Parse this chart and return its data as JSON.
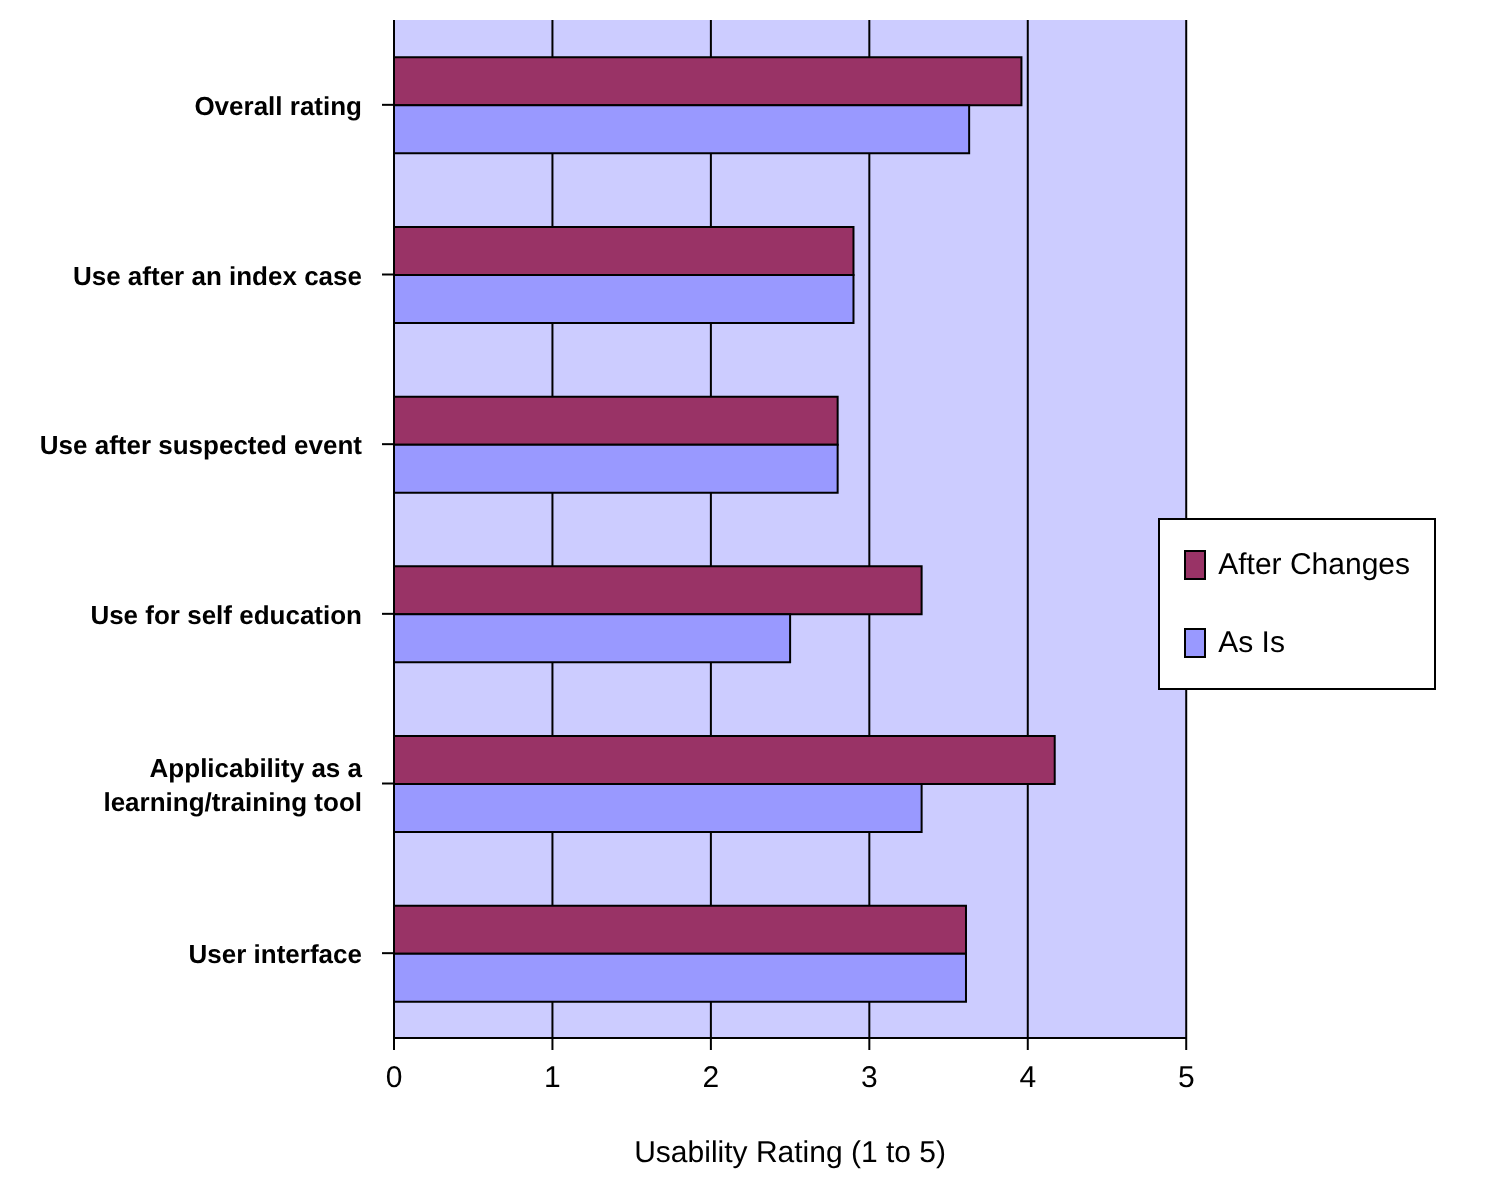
{
  "chart_data": {
    "type": "bar",
    "orientation": "horizontal",
    "xlabel": "Usability Rating (1 to 5)",
    "categories": [
      "Overall rating",
      "Use after an index case",
      "Use after suspected event",
      "Use for self education",
      "Applicability as a learning/training tool",
      "User interface"
    ],
    "series": [
      {
        "name": "After Changes",
        "color": "#993366",
        "values": [
          3.96,
          2.9,
          2.8,
          3.33,
          4.17,
          3.61
        ]
      },
      {
        "name": "As Is",
        "color": "#9999ff",
        "values": [
          3.63,
          2.9,
          2.8,
          2.5,
          3.33,
          3.61
        ]
      }
    ],
    "xlim": [
      0,
      5
    ],
    "xticks": [
      0,
      1,
      2,
      3,
      4,
      5
    ],
    "grid": "x",
    "legend": "right"
  }
}
